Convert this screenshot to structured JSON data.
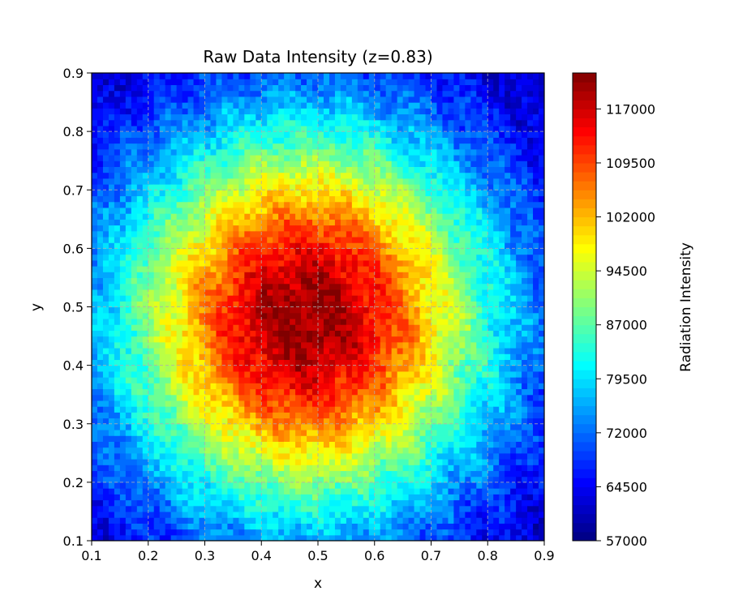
{
  "chart_data": {
    "type": "heatmap",
    "title": "Raw Data Intensity (z=0.83)",
    "xlabel": "x",
    "ylabel": "y",
    "xlim": [
      0.1,
      0.9
    ],
    "ylim": [
      0.1,
      0.9
    ],
    "xticks": [
      "0.1",
      "0.2",
      "0.3",
      "0.4",
      "0.5",
      "0.6",
      "0.7",
      "0.8",
      "0.9"
    ],
    "yticks": [
      "0.1",
      "0.2",
      "0.3",
      "0.4",
      "0.5",
      "0.6",
      "0.7",
      "0.8",
      "0.9"
    ],
    "grid": true,
    "colormap": "jet",
    "colorbar": {
      "label": "Radiation Intensity",
      "range": [
        57000,
        122000
      ],
      "ticks": [
        "57000",
        "64500",
        "72000",
        "79500",
        "87000",
        "94500",
        "102000",
        "109500",
        "117000"
      ]
    },
    "field": {
      "shape": "radial gaussian",
      "center": [
        0.48,
        0.48
      ],
      "peak": 121000,
      "corner_value": 63000,
      "noise": "fine-grained mottled"
    }
  }
}
